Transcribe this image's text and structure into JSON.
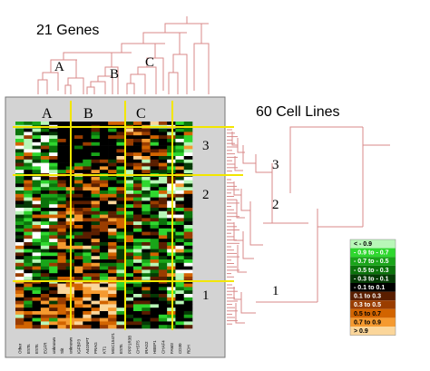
{
  "title_genes": "21 Genes",
  "title_cells": "60 Cell Lines",
  "gene_cluster_labels": {
    "top": [
      "A",
      "B",
      "C"
    ],
    "panel": [
      "A",
      "B",
      "C"
    ]
  },
  "cell_cluster_labels": {
    "left": [
      "3",
      "2",
      "1"
    ],
    "right": [
      "3",
      "2",
      "1"
    ]
  },
  "gene_names": [
    "Other",
    "ESTs",
    "ESTs",
    "EGFR",
    "unknown",
    "Slit",
    "unknown",
    "IGFBP3",
    "A4GNPT",
    "PRAG",
    "KT1",
    "MGC15471",
    "ESTs",
    "PPP1R3B",
    "CHST5",
    "IRAG2",
    "HBEP1",
    "CHAF4",
    "FAM3",
    "CD30",
    "RDH"
  ],
  "legend": [
    {
      "label": "< - 0.9",
      "color": "#b8f7b8",
      "text_color": "#000000"
    },
    {
      "label": "- 0.9 to - 0.7",
      "color": "#2fd72f",
      "text_color": "#ffffff"
    },
    {
      "label": "- 0.7 to - 0.5",
      "color": "#19a519",
      "text_color": "#ffffff"
    },
    {
      "label": "- 0.5 to - 0.3",
      "color": "#0b730b",
      "text_color": "#ffffff"
    },
    {
      "label": "- 0.3 to - 0.1",
      "color": "#053a05",
      "text_color": "#ffffff"
    },
    {
      "label": "- 0.1 to 0.1",
      "color": "#000000",
      "text_color": "#ffffff"
    },
    {
      "label": "0.1 to 0.3",
      "color": "#5a1e00",
      "text_color": "#ffffff"
    },
    {
      "label": "0.3 to 0.5",
      "color": "#9a3d00",
      "text_color": "#ffffff"
    },
    {
      "label": "0.5 to 0.7",
      "color": "#d26400",
      "text_color": "#000000"
    },
    {
      "label": "0.7 to 0.9",
      "color": "#f59a30",
      "text_color": "#000000"
    },
    {
      "label": "> 0.9",
      "color": "#fbd69a",
      "text_color": "#000000"
    }
  ],
  "colors": {
    "divider": "#f2e600",
    "dendrogram": "#d98a8a",
    "panel": "#d3d3d3"
  }
}
